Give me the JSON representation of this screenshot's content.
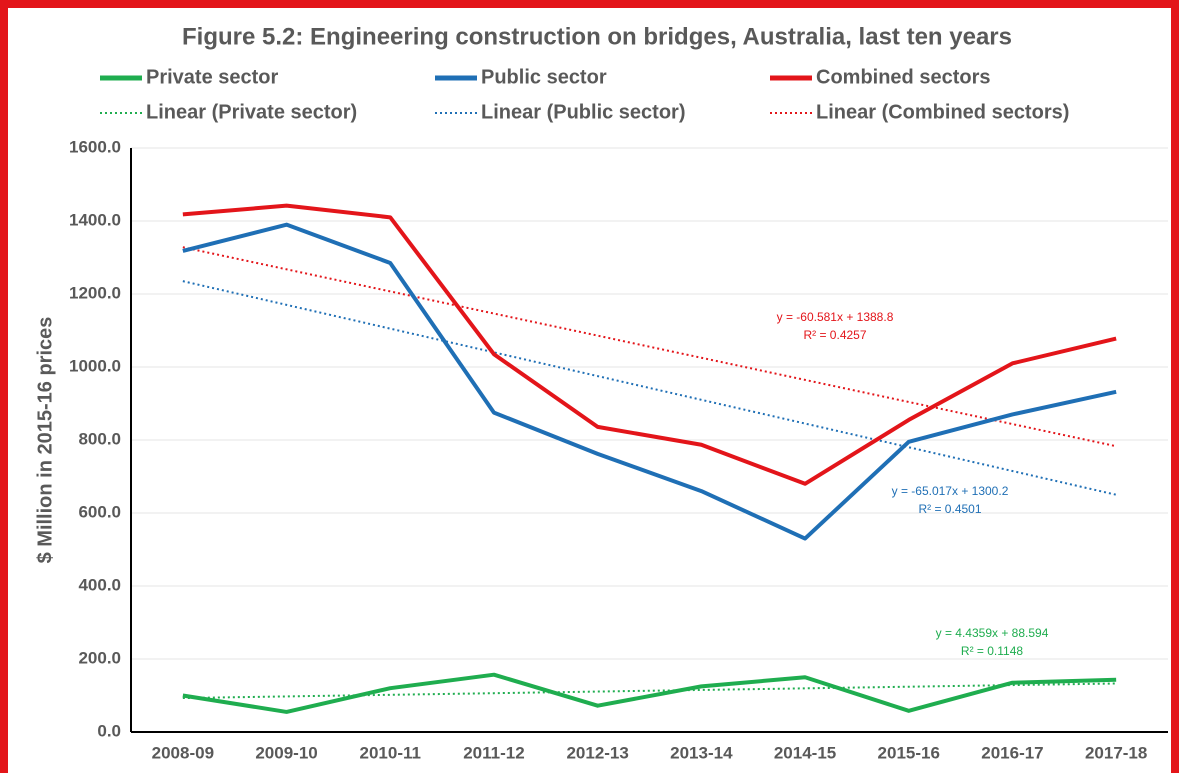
{
  "chart_data": {
    "type": "line",
    "title": "Figure 5.2: Engineering construction on bridges, Australia, last ten years",
    "y_label": "$ Million in 2015-16 prices",
    "categories": [
      "2008-09",
      "2009-10",
      "2010-11",
      "2011-12",
      "2012-13",
      "2013-14",
      "2014-15",
      "2015-16",
      "2016-17",
      "2017-18"
    ],
    "series": [
      {
        "name": "Private sector",
        "color": "#1fad4f",
        "style": "solid",
        "values": [
          100,
          55,
          120,
          157,
          72,
          125,
          150,
          58,
          135,
          143
        ]
      },
      {
        "name": "Public sector",
        "color": "#1f6fb5",
        "style": "solid",
        "values": [
          1318,
          1390,
          1285,
          875,
          762,
          660,
          530,
          795,
          870,
          932
        ]
      },
      {
        "name": "Combined sectors",
        "color": "#e3151a",
        "style": "solid",
        "values": [
          1418,
          1442,
          1410,
          1035,
          836,
          787,
          680,
          855,
          1010,
          1078
        ]
      },
      {
        "name": "Linear (Private sector)",
        "color": "#1fad4f",
        "style": "dotted",
        "values": [
          93.0,
          97.5,
          101.9,
          106.3,
          110.8,
          115.2,
          119.6,
          124.1,
          128.5,
          132.9
        ]
      },
      {
        "name": "Linear (Public sector)",
        "color": "#1f6fb5",
        "style": "dotted",
        "values": [
          1235.2,
          1170.2,
          1105.1,
          1040.1,
          975.1,
          910.1,
          845.1,
          780.1,
          715.0,
          650.0
        ]
      },
      {
        "name": "Linear (Combined sectors)",
        "color": "#e3151a",
        "style": "dotted",
        "values": [
          1328.2,
          1267.6,
          1207.1,
          1146.5,
          1085.9,
          1025.3,
          964.7,
          904.1,
          843.6,
          783.0
        ]
      }
    ],
    "annotations": [
      {
        "color": "#e3151a",
        "lines": [
          "y = -60.581x + 1388.8",
          "R² = 0.4257"
        ]
      },
      {
        "color": "#1f6fb5",
        "lines": [
          "y = -65.017x + 1300.2",
          "R² = 0.4501"
        ]
      },
      {
        "color": "#1fad4f",
        "lines": [
          "y = 4.4359x + 88.594",
          "R² = 0.1148"
        ]
      }
    ],
    "ylim": [
      0,
      1600
    ],
    "yticks": [
      {
        "value": 0,
        "label": "0.0"
      },
      {
        "value": 200,
        "label": "200.0"
      },
      {
        "value": 400,
        "label": "400.0"
      },
      {
        "value": 600,
        "label": "600.0"
      },
      {
        "value": 800,
        "label": "800.0"
      },
      {
        "value": 1000,
        "label": "1000.0"
      },
      {
        "value": 1200,
        "label": "1200.0"
      },
      {
        "value": 1400,
        "label": "1400.0"
      },
      {
        "value": 1600,
        "label": "1600.0"
      }
    ],
    "grid": true,
    "legend": "top"
  }
}
